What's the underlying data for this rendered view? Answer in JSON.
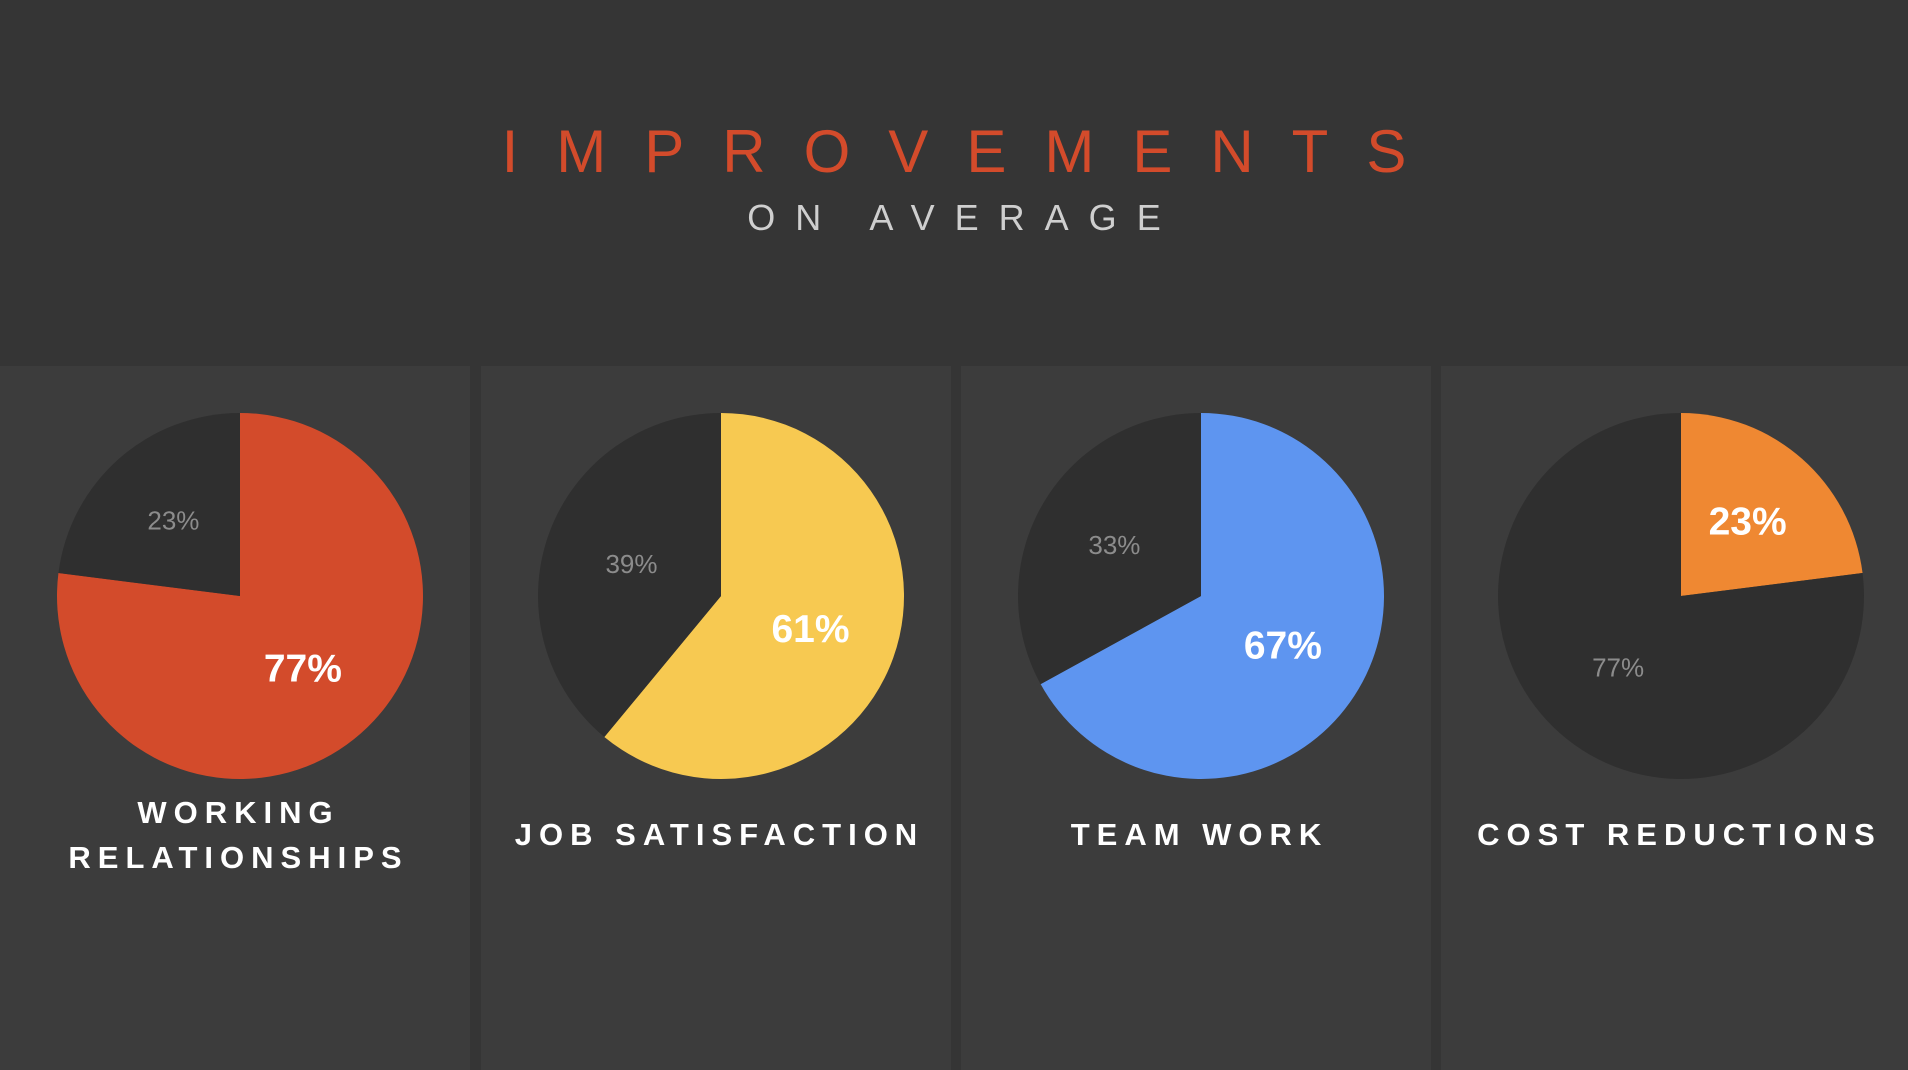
{
  "header": {
    "title": "IMPROVEMENTS",
    "subtitle": "ON AVERAGE"
  },
  "colors": {
    "background": "#353535",
    "panel": "#3c3c3c",
    "remainder": "#2f2f2f",
    "title": "#d34b2b",
    "muted_label": "#8c8c8c"
  },
  "chart_data": [
    {
      "type": "pie",
      "label_lines": [
        "WORKING",
        "RELATIONSHIPS"
      ],
      "slices": [
        {
          "value": 77,
          "label": "77%",
          "color": "#d34b2b",
          "highlight": true
        },
        {
          "value": 23,
          "label": "23%",
          "color": "#2f2f2f",
          "highlight": false
        }
      ]
    },
    {
      "type": "pie",
      "label_lines": [
        "JOB SATISFACTION"
      ],
      "slices": [
        {
          "value": 61,
          "label": "61%",
          "color": "#f7c951",
          "highlight": true
        },
        {
          "value": 39,
          "label": "39%",
          "color": "#2f2f2f",
          "highlight": false
        }
      ]
    },
    {
      "type": "pie",
      "label_lines": [
        "TEAM WORK"
      ],
      "slices": [
        {
          "value": 67,
          "label": "67%",
          "color": "#5e95f0",
          "highlight": true
        },
        {
          "value": 33,
          "label": "33%",
          "color": "#2f2f2f",
          "highlight": false
        }
      ]
    },
    {
      "type": "pie",
      "label_lines": [
        "COST REDUCTIONS"
      ],
      "slices": [
        {
          "value": 23,
          "label": "23%",
          "color": "#ef8832",
          "highlight": true
        },
        {
          "value": 77,
          "label": "77%",
          "color": "#2f2f2f",
          "highlight": false
        }
      ]
    }
  ]
}
